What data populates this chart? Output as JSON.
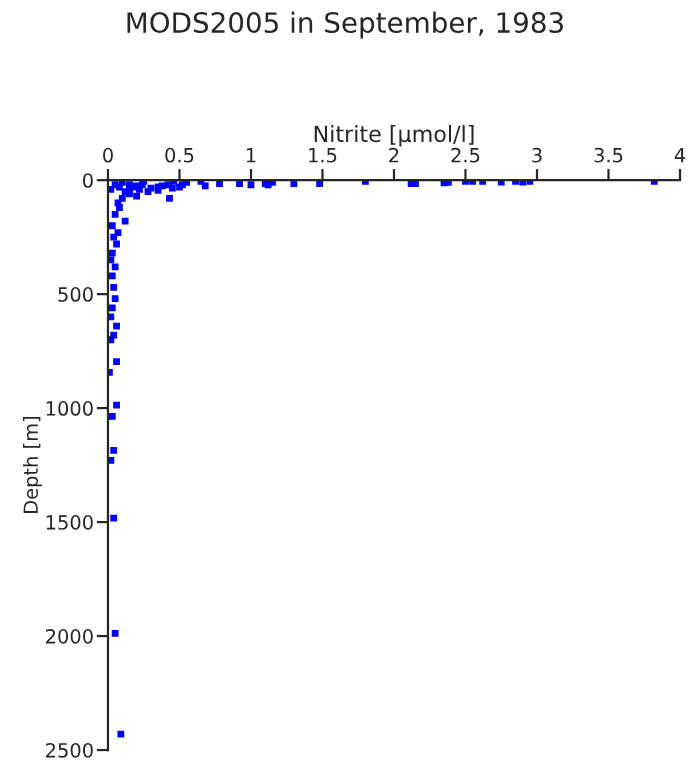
{
  "chart_data": {
    "type": "scatter",
    "title": "MODS2005 in September, 1983",
    "xlabel": "Nitrite [µmol/l]",
    "ylabel": "Depth [m]",
    "xlim": [
      0,
      4
    ],
    "xticks": [
      0,
      0.5,
      1,
      1.5,
      2,
      2.5,
      3,
      3.5,
      4
    ],
    "ylim": [
      2500,
      0
    ],
    "yticks": [
      0,
      500,
      1000,
      1500,
      2000,
      2500
    ],
    "grid": false,
    "marker": "square",
    "series": [
      {
        "color": "#0000ff",
        "x": [
          3.82,
          2.95,
          2.9,
          2.85,
          2.75,
          2.62,
          2.55,
          2.5,
          2.38,
          2.35,
          2.15,
          2.12,
          1.8,
          1.48,
          1.3,
          1.15,
          1.12,
          1.1,
          1.0,
          0.92,
          0.78,
          0.68,
          0.65,
          0.55,
          0.52,
          0.5,
          0.46,
          0.45,
          0.42,
          0.38,
          0.35,
          0.3,
          0.28,
          0.25,
          0.24,
          0.22,
          0.2,
          0.18,
          0.15,
          0.12,
          0.1,
          0.08,
          0.05,
          0.02,
          0.35,
          0.43,
          0.15,
          0.1,
          0.08,
          0.05,
          0.12,
          0.03,
          0.07,
          0.06,
          0.03,
          0.05,
          0.03,
          0.04,
          0.05,
          0.03,
          0.02,
          0.06,
          0.04,
          0.02,
          0.06,
          0.01,
          0.06,
          0.03,
          0.04,
          0.02,
          0.04,
          0.05,
          0.09,
          0.15,
          0.2,
          0.07,
          0.04,
          0.02
        ],
        "values": [
          5,
          5,
          8,
          5,
          8,
          5,
          5,
          5,
          10,
          12,
          15,
          15,
          5,
          15,
          15,
          10,
          20,
          15,
          20,
          15,
          15,
          25,
          5,
          10,
          20,
          30,
          5,
          35,
          20,
          25,
          30,
          35,
          50,
          5,
          20,
          40,
          25,
          30,
          20,
          50,
          10,
          30,
          20,
          40,
          45,
          80,
          60,
          80,
          120,
          150,
          180,
          200,
          230,
          280,
          320,
          380,
          420,
          470,
          520,
          560,
          600,
          640,
          680,
          700,
          796,
          843,
          987,
          1036,
          1185,
          1229,
          1483,
          1988,
          2430,
          45,
          70,
          100,
          250,
          350
        ]
      }
    ]
  }
}
